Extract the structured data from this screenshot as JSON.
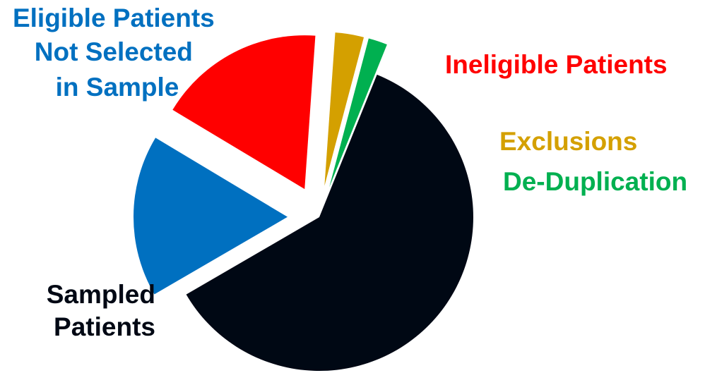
{
  "chart_data": {
    "type": "pie",
    "title": "",
    "slices": [
      {
        "name": "Sampled Patients",
        "label_lines": [
          "Sampled",
          "Patients"
        ],
        "value": 60.5,
        "color": "#000814",
        "exploded": false
      },
      {
        "name": "Eligible Patients Not Selected in Sample",
        "label_lines": [
          "Eligible Patients",
          "Not Selected",
          "in Sample"
        ],
        "value": 17,
        "color": "#0070C0",
        "exploded": true
      },
      {
        "name": "Ineligible Patients",
        "label_lines": [
          "Ineligible Patients"
        ],
        "value": 17.5,
        "color": "#FF0000",
        "exploded": true
      },
      {
        "name": "Exclusions",
        "label_lines": [
          "Exclusions"
        ],
        "value": 3,
        "color": "#D4A000",
        "exploded": true
      },
      {
        "name": "De-Duplication",
        "label_lines": [
          "De-Duplication"
        ],
        "value": 2,
        "color": "#00B050",
        "exploded": true
      }
    ],
    "legend": "none (labels placed beside slices)",
    "exploded": "all slices except Sampled Patients"
  }
}
